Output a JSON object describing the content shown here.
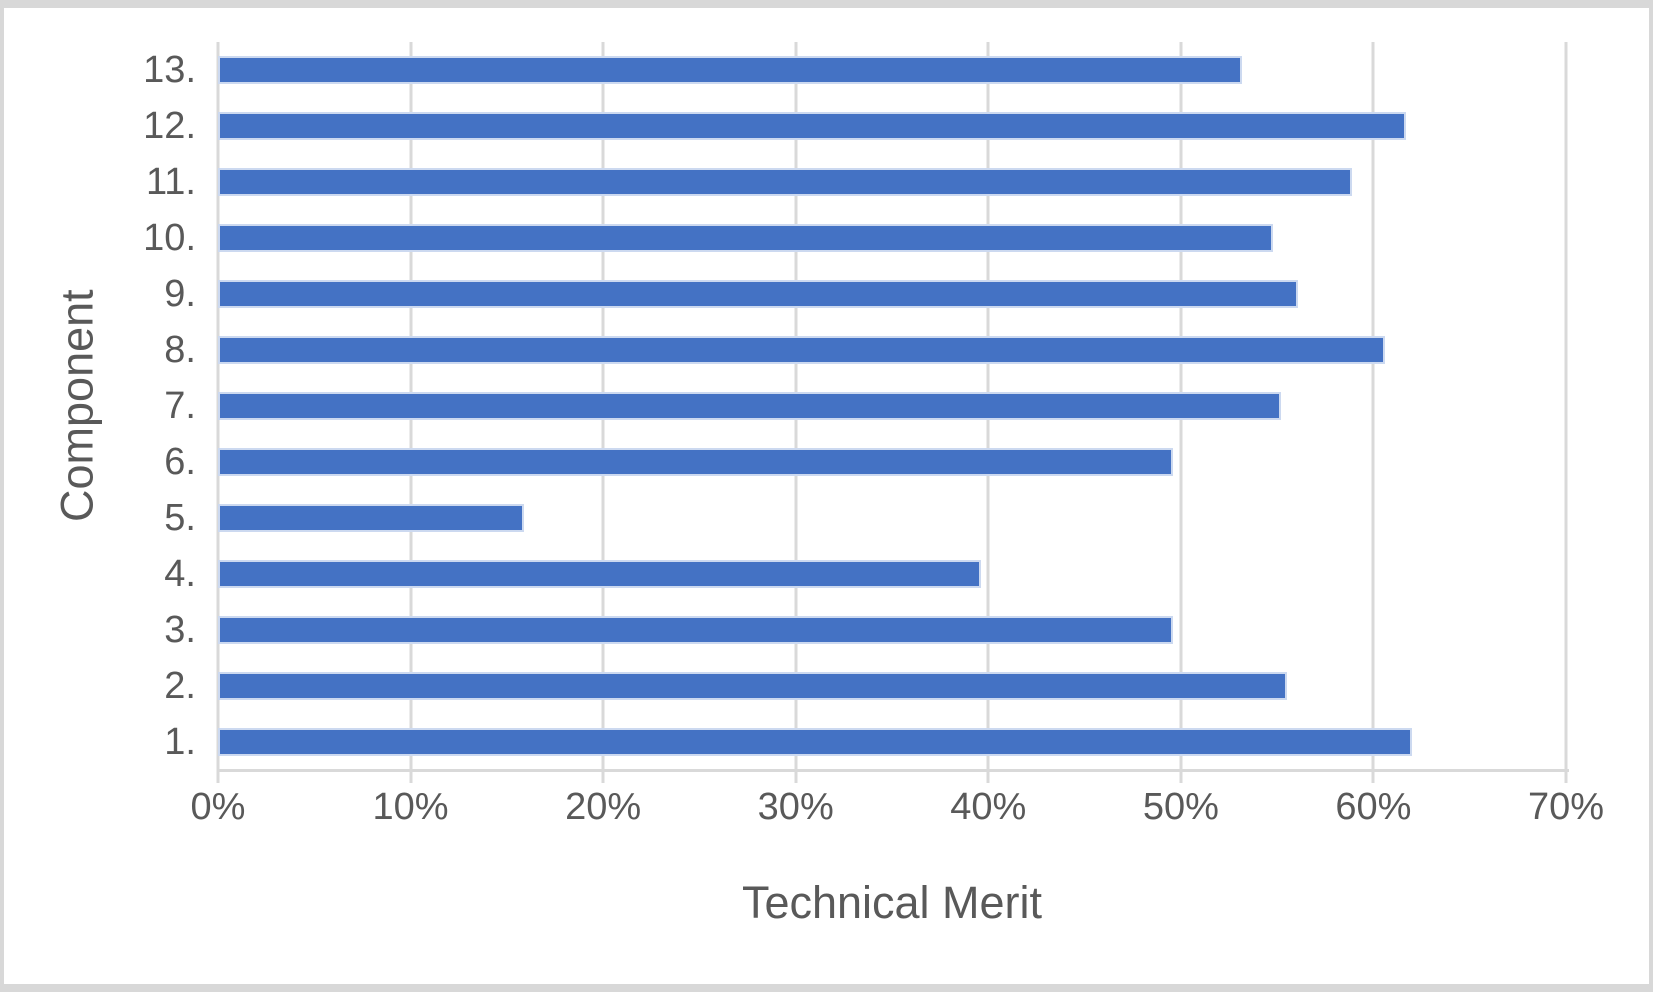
{
  "colors": {
    "bar_fill": "#4472C4",
    "bar_edge": "#CCD9F0",
    "gridline": "#D9D9D9",
    "text": "#595959",
    "frame_border": "#D8D8D8",
    "background": "#FFFFFF"
  },
  "chart_data": {
    "type": "bar",
    "orientation": "horizontal",
    "title": "",
    "xlabel": "Technical Merit",
    "ylabel": "Component",
    "categories": [
      "1.",
      "2.",
      "3.",
      "4.",
      "5.",
      "6.",
      "7.",
      "8.",
      "9.",
      "10.",
      "11.",
      "12.",
      "13."
    ],
    "values": [
      62.0,
      55.5,
      49.6,
      39.6,
      15.9,
      49.6,
      55.2,
      60.6,
      56.1,
      54.8,
      58.9,
      61.7,
      53.2
    ],
    "values_unit": "%",
    "category_order_top_to_bottom": [
      "13.",
      "12.",
      "11.",
      "10.",
      "9.",
      "8.",
      "7.",
      "6.",
      "5.",
      "4.",
      "3.",
      "2.",
      "1."
    ],
    "xlim": [
      0,
      70
    ],
    "x_tick_labels": [
      "0%",
      "10%",
      "20%",
      "30%",
      "40%",
      "50%",
      "60%",
      "70%"
    ],
    "x_tick_step": 10,
    "grid": "vertical-gridlines-on",
    "legend": "none"
  }
}
